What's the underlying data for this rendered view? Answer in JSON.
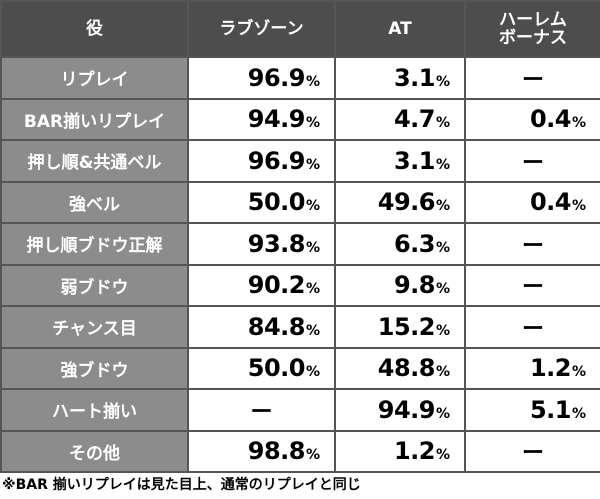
{
  "headers": {
    "role": "役",
    "love_zone": "ラブゾーン",
    "at": "AT",
    "harem_bonus_line1": "ハーレム",
    "harem_bonus_line2": "ボーナス"
  },
  "percent_sign": "%",
  "dash": "ー",
  "rows": [
    {
      "role": "リプレイ",
      "love": "96.9",
      "at": "3.1",
      "harem": null
    },
    {
      "role": "BAR揃いリプレイ",
      "love": "94.9",
      "at": "4.7",
      "harem": "0.4"
    },
    {
      "role": "押し順&共通ベル",
      "love": "96.9",
      "at": "3.1",
      "harem": null
    },
    {
      "role": "強ベル",
      "love": "50.0",
      "at": "49.6",
      "harem": "0.4"
    },
    {
      "role": "押し順ブドウ正解",
      "love": "93.8",
      "at": "6.3",
      "harem": null
    },
    {
      "role": "弱ブドウ",
      "love": "90.2",
      "at": "9.8",
      "harem": null
    },
    {
      "role": "チャンス目",
      "love": "84.8",
      "at": "15.2",
      "harem": null
    },
    {
      "role": "強ブドウ",
      "love": "50.0",
      "at": "48.8",
      "harem": "1.2"
    },
    {
      "role": "ハート揃い",
      "love": null,
      "at": "94.9",
      "harem": "5.1"
    },
    {
      "role": "その他",
      "love": "98.8",
      "at": "1.2",
      "harem": null
    }
  ],
  "note": "※BAR 揃いリプレイは見た目上、通常のリプレイと同じ"
}
